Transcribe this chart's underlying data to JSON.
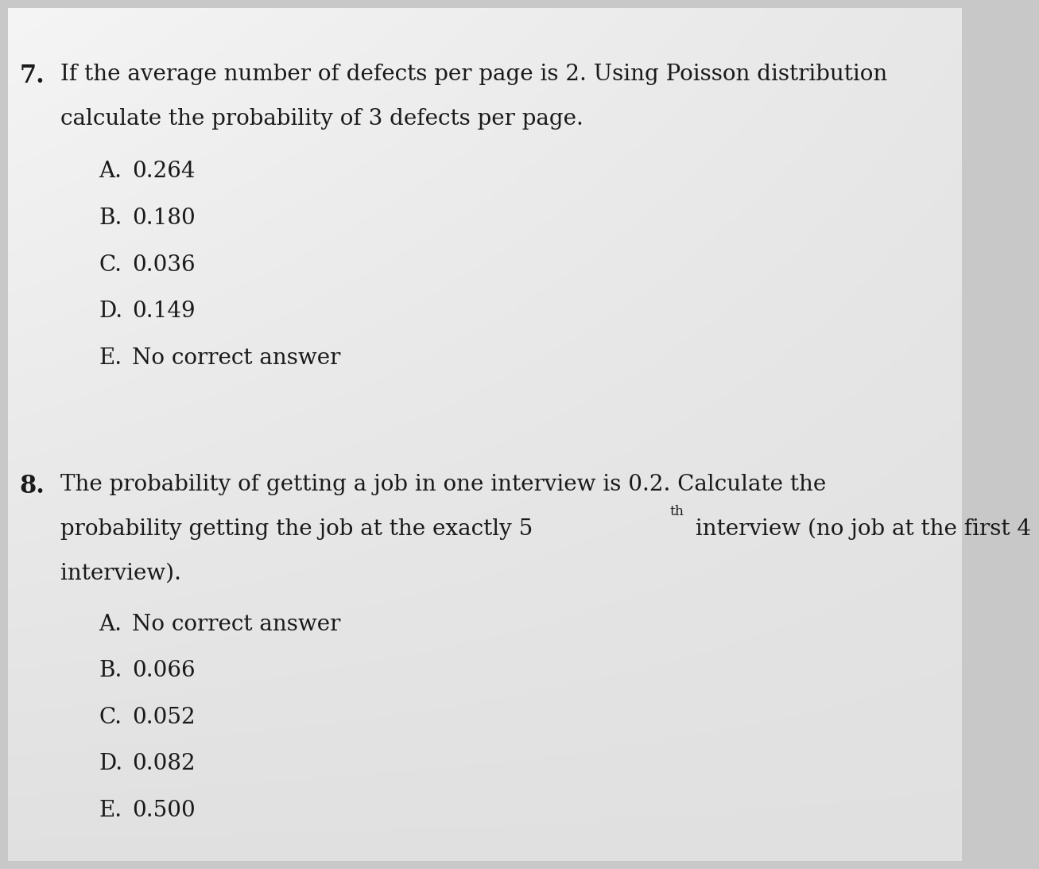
{
  "fig_width": 12.0,
  "fig_height": 10.73,
  "text_color": "#1a1a1a",
  "q7_number": "7.",
  "q7_line1": "If the average number of defects per page is 2. Using Poisson distribution",
  "q7_line2": "calculate the probability of 3 defects per page.",
  "q7_options": [
    {
      "label": "A.",
      "text": "0.264"
    },
    {
      "label": "B.",
      "text": "0.180"
    },
    {
      "label": "C.",
      "text": "0.036"
    },
    {
      "label": "D.",
      "text": "0.149"
    },
    {
      "label": "E.",
      "text": "No correct answer"
    }
  ],
  "q8_number": "8.",
  "q8_line1": "The probability of getting a job in one interview is 0.2. Calculate the",
  "q8_line2_base": "probability getting the job at the exactly 5",
  "q8_sup": "th",
  "q8_line2_cont": " interview (no job at the first 4",
  "q8_line3": "interview).",
  "q8_options": [
    {
      "label": "A.",
      "text": "No correct answer"
    },
    {
      "label": "B.",
      "text": "0.066"
    },
    {
      "label": "C.",
      "text": "0.052"
    },
    {
      "label": "D.",
      "text": "0.082"
    },
    {
      "label": "E.",
      "text": "0.500"
    }
  ],
  "fontsize": 20,
  "number_fontsize": 22,
  "option_fontsize": 20
}
